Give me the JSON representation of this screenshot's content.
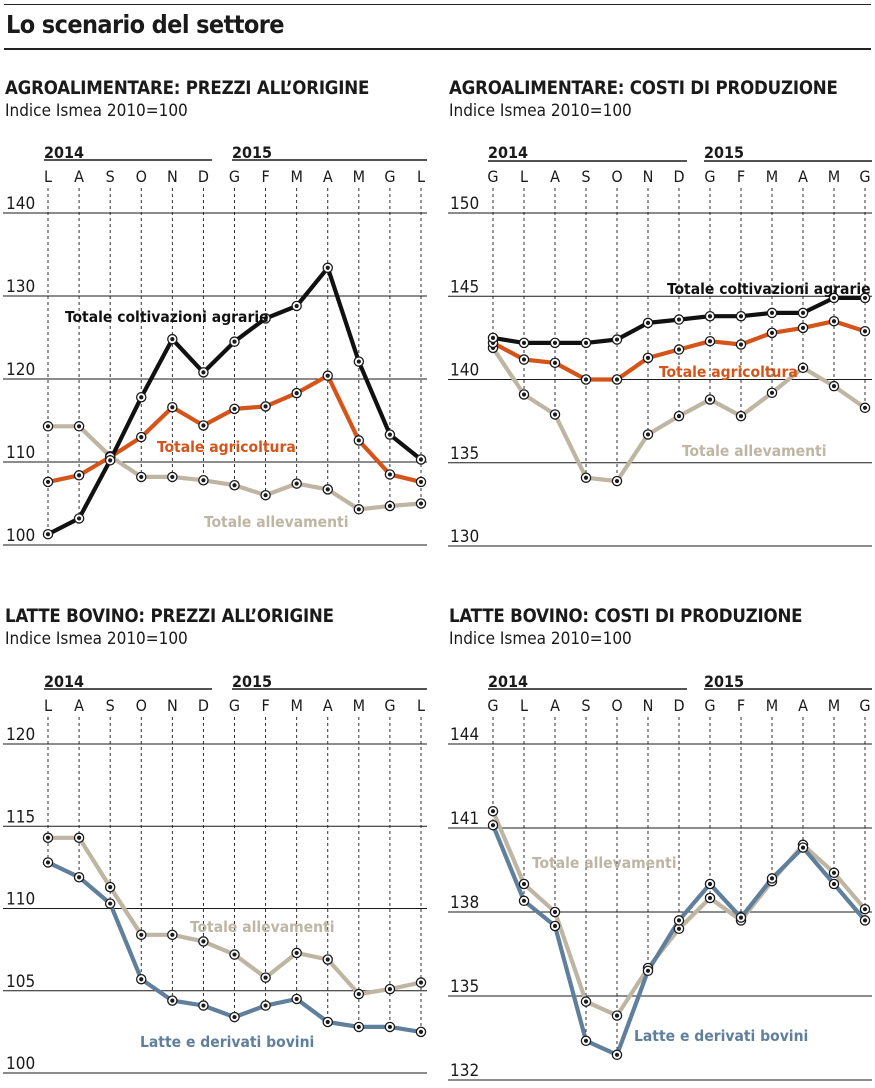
{
  "main_title": "Lo scenario del settore",
  "colors": {
    "black_series": "#111111",
    "orange_series": "#d4541a",
    "beige_series": "#bfb5a3",
    "blue_series": "#5f7f9c",
    "grid": "#1a1a1a"
  },
  "chart_data": [
    {
      "type": "line",
      "title": "AGROALIMENTARE: PREZZI ALL’ORIGINE",
      "subtitle": "Indice Ismea 2010=100",
      "year_labels": [
        "2014",
        "2015"
      ],
      "categories": [
        "L",
        "A",
        "S",
        "O",
        "N",
        "D",
        "G",
        "F",
        "M",
        "A",
        "M",
        "G",
        "L"
      ],
      "ylim": [
        100,
        140
      ],
      "yticks": [
        100,
        110,
        120,
        130,
        140
      ],
      "series": [
        {
          "name": "Totale allevamenti",
          "color": "beige",
          "values": [
            114.3,
            114.3,
            110.7,
            108.2,
            108.2,
            107.8,
            107.2,
            106.0,
            107.4,
            106.7,
            104.3,
            104.7,
            105.0
          ]
        },
        {
          "name": "Totale agricoltura",
          "color": "orange",
          "values": [
            107.6,
            108.4,
            110.6,
            113.0,
            116.6,
            114.4,
            116.4,
            116.7,
            118.3,
            120.4,
            112.6,
            108.5,
            107.6
          ]
        },
        {
          "name": "Totale coltivazioni agrarie",
          "color": "black",
          "values": [
            101.3,
            103.2,
            110.2,
            117.8,
            124.8,
            120.8,
            124.5,
            127.3,
            128.8,
            133.4,
            122.1,
            113.3,
            110.3
          ]
        }
      ]
    },
    {
      "type": "line",
      "title": "AGROALIMENTARE: COSTI DI PRODUZIONE",
      "subtitle": "Indice Ismea 2010=100",
      "year_labels": [
        "2014",
        "2015"
      ],
      "categories": [
        "G",
        "L",
        "A",
        "S",
        "O",
        "N",
        "D",
        "G",
        "F",
        "M",
        "A",
        "M",
        "G"
      ],
      "ylim": [
        130,
        150
      ],
      "yticks": [
        130,
        135,
        140,
        145,
        150
      ],
      "series": [
        {
          "name": "Totale allevamenti",
          "color": "beige",
          "values": [
            141.9,
            139.1,
            137.9,
            134.1,
            133.9,
            136.7,
            137.8,
            138.8,
            137.8,
            139.2,
            140.7,
            139.6,
            138.3
          ]
        },
        {
          "name": "Totale agricoltura",
          "color": "orange",
          "values": [
            142.2,
            141.2,
            141.0,
            140.0,
            140.0,
            141.3,
            141.8,
            142.3,
            142.1,
            142.8,
            143.1,
            143.5,
            142.9
          ]
        },
        {
          "name": "Totale coltivazioni agrarie",
          "color": "black",
          "values": [
            142.5,
            142.2,
            142.2,
            142.2,
            142.4,
            143.4,
            143.6,
            143.8,
            143.8,
            144.0,
            144.0,
            144.9,
            144.9
          ]
        }
      ]
    },
    {
      "type": "line",
      "title": "LATTE BOVINO: PREZZI ALL’ORIGINE",
      "subtitle": "Indice Ismea 2010=100",
      "year_labels": [
        "2014",
        "2015"
      ],
      "categories": [
        "L",
        "A",
        "S",
        "O",
        "N",
        "D",
        "G",
        "F",
        "M",
        "A",
        "M",
        "G",
        "L"
      ],
      "ylim": [
        100,
        120
      ],
      "yticks": [
        100,
        105,
        110,
        115,
        120
      ],
      "series": [
        {
          "name": "Totale allevamenti",
          "color": "beige",
          "values": [
            114.3,
            114.3,
            111.3,
            108.4,
            108.4,
            108.0,
            107.2,
            105.8,
            107.3,
            106.9,
            104.8,
            105.1,
            105.5
          ]
        },
        {
          "name": "Latte e derivati bovini",
          "color": "blue",
          "values": [
            112.8,
            111.9,
            110.3,
            105.7,
            104.4,
            104.1,
            103.4,
            104.1,
            104.5,
            103.1,
            102.8,
            102.8,
            102.5
          ]
        }
      ]
    },
    {
      "type": "line",
      "title": "LATTE BOVINO: COSTI DI PRODUZIONE",
      "subtitle": "Indice Ismea 2010=100",
      "year_labels": [
        "2014",
        "2015"
      ],
      "categories": [
        "G",
        "L",
        "A",
        "S",
        "O",
        "N",
        "D",
        "G",
        "F",
        "M",
        "A",
        "M",
        "G"
      ],
      "ylim": [
        132,
        144
      ],
      "yticks": [
        132,
        135,
        138,
        141,
        144
      ],
      "series": [
        {
          "name": "Totale allevamenti",
          "color": "beige",
          "values": [
            141.6,
            139.0,
            138.0,
            134.8,
            134.3,
            136.0,
            137.4,
            138.5,
            137.7,
            139.1,
            140.4,
            139.4,
            138.1
          ]
        },
        {
          "name": "Latte e derivati bovini",
          "color": "blue",
          "values": [
            141.1,
            138.4,
            137.5,
            133.4,
            132.9,
            135.9,
            137.7,
            139.0,
            137.8,
            139.2,
            140.3,
            139.0,
            137.7
          ]
        }
      ]
    }
  ]
}
